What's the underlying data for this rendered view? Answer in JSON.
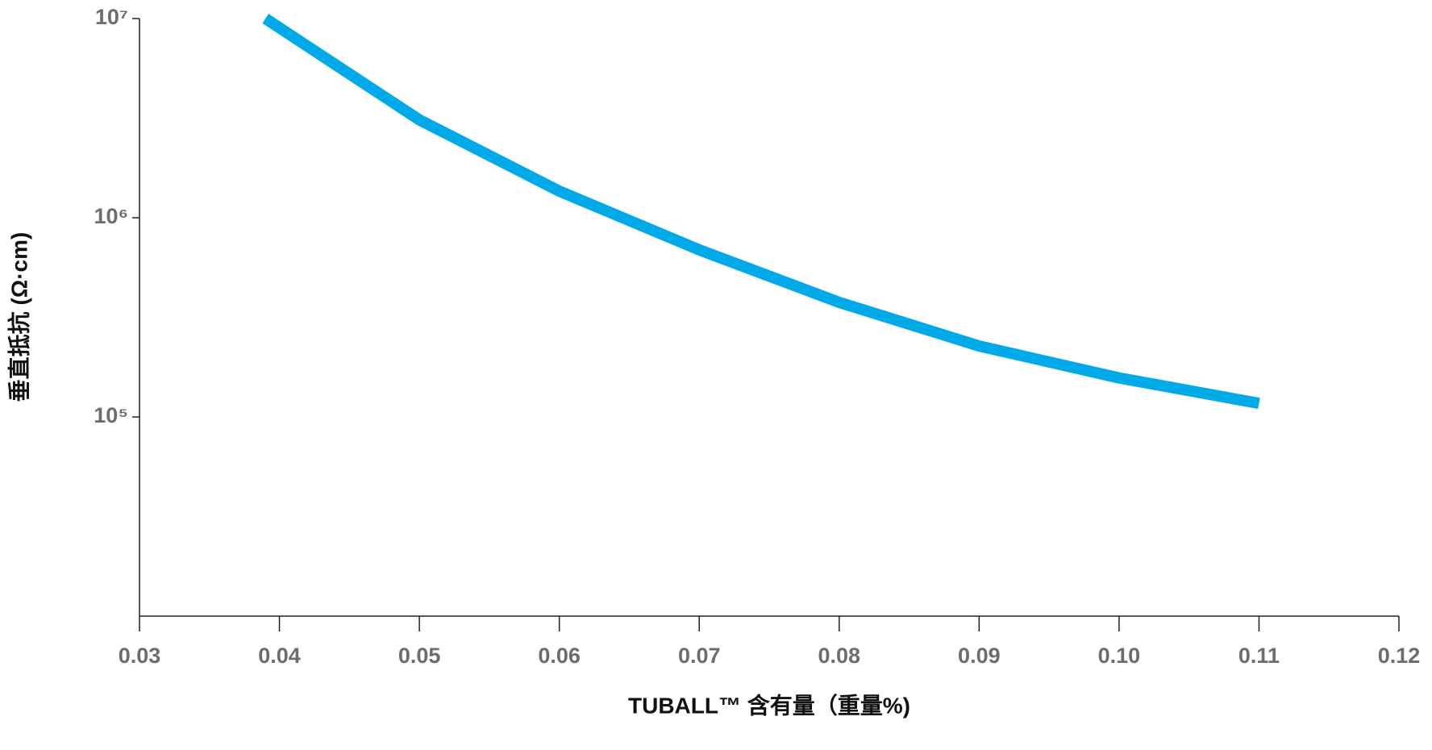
{
  "chart_data": {
    "type": "line",
    "xlabel": "TUBALL™ 含有量（重量%)",
    "ylabel": "垂直抵抗 (Ω·cm)",
    "x": [
      0.039,
      0.05,
      0.06,
      0.07,
      0.08,
      0.09,
      0.1,
      0.11
    ],
    "series": [
      {
        "name": "垂直抵抗",
        "color": "#00a9e8",
        "values": [
          10000000,
          3100000,
          1360000,
          690000,
          376000,
          227000,
          157000,
          117000
        ]
      }
    ],
    "xlim": [
      0.03,
      0.12
    ],
    "xticks": [
      0.03,
      0.04,
      0.05,
      0.06,
      0.07,
      0.08,
      0.09,
      {
        "value": 0.1,
        "label": "0.10"
      },
      0.11,
      0.12
    ],
    "ylim": [
      10000,
      10000000
    ],
    "yscale": "log",
    "yticks": [
      {
        "value": 100000,
        "label": "10⁵"
      },
      {
        "value": 1000000,
        "label": "10⁶"
      },
      {
        "value": 10000000,
        "label": "10⁷"
      }
    ]
  }
}
